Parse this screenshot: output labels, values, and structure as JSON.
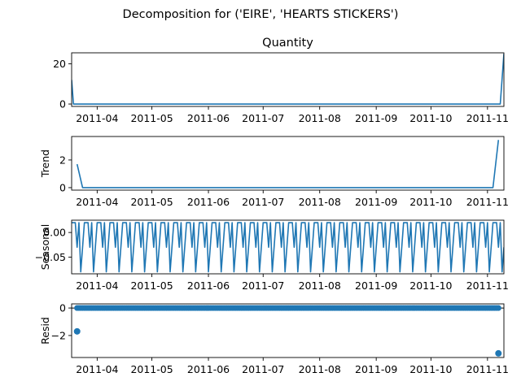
{
  "figure": {
    "suptitle": "Decomposition for ('EIRE', 'HEARTS  STICKERS')"
  },
  "x_tick_labels": [
    "2011-04",
    "2011-05",
    "2011-06",
    "2011-07",
    "2011-08",
    "2011-09",
    "2011-10",
    "2011-11"
  ],
  "chart_data": [
    {
      "type": "line",
      "title": "Quantity",
      "ylabel": "",
      "x_range": [
        "2011-03-18",
        "2011-11-10"
      ],
      "ylim": [
        -1.2,
        25.5
      ],
      "yticks": [
        0,
        20
      ],
      "points": [
        [
          "2011-03-18",
          12
        ],
        [
          "2011-03-19",
          0
        ],
        [
          "2011-11-08",
          0
        ],
        [
          "2011-11-10",
          25
        ]
      ]
    },
    {
      "type": "line",
      "title": "",
      "ylabel": "Trend",
      "x_range": [
        "2011-03-18",
        "2011-11-10"
      ],
      "ylim": [
        -0.18,
        3.7
      ],
      "yticks": [
        0,
        2
      ],
      "points": [
        [
          "2011-03-21",
          1.7
        ],
        [
          "2011-03-24",
          0
        ],
        [
          "2011-11-04",
          0
        ],
        [
          "2011-11-07",
          3.45
        ]
      ]
    },
    {
      "type": "line",
      "title": "",
      "ylabel": "Seasonal",
      "x_range": [
        "2011-03-18",
        "2011-11-10"
      ],
      "ylim": [
        -0.084,
        0.025
      ],
      "yticks": [
        0.0,
        -0.05
      ],
      "yticklabels": [
        "0.00",
        "−0.05"
      ],
      "pattern": {
        "start": "2011-03-18",
        "period_days": 7,
        "weekly_values": [
          0.02,
          0.02,
          0.02,
          -0.03,
          0.02,
          -0.08,
          -0.03
        ]
      }
    },
    {
      "type": "scatter",
      "title": "",
      "ylabel": "Resid",
      "x_range": [
        "2011-03-18",
        "2011-11-10"
      ],
      "ylim": [
        -3.6,
        0.3
      ],
      "yticks": [
        0,
        -2
      ],
      "yticklabels": [
        "0",
        "−2"
      ],
      "zero_line": true,
      "dense_points": {
        "start": "2011-03-21",
        "end": "2011-11-07",
        "step_days": 1,
        "value": 0
      },
      "outliers": [
        [
          "2011-03-21",
          -1.7
        ],
        [
          "2011-11-07",
          -3.3
        ]
      ]
    }
  ]
}
